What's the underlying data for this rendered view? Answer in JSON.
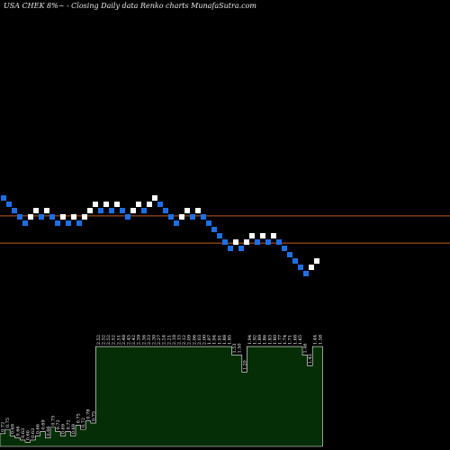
{
  "title": "USA CHEK 8%~ - Closing Daily data Renko charts MunafaSutra.com",
  "colors": {
    "background": "#000000",
    "up_brick": "#ffffff",
    "down_brick": "#1e6fe6",
    "reference_line": "#c85a1e",
    "volume_fill": "#062e06",
    "volume_outline": "#ffffff",
    "label_text": "#ffffff"
  },
  "chart_data": {
    "type": "renko",
    "reference_lines": [
      2.35,
      2.09
    ],
    "bricks": [
      {
        "dir": "down",
        "value": 2.52
      },
      {
        "dir": "down",
        "value": 2.46
      },
      {
        "dir": "down",
        "value": 2.4
      },
      {
        "dir": "down",
        "value": 2.34
      },
      {
        "dir": "down",
        "value": 2.28
      },
      {
        "dir": "up",
        "value": 2.34
      },
      {
        "dir": "up",
        "value": 2.4
      },
      {
        "dir": "down",
        "value": 2.34
      },
      {
        "dir": "up",
        "value": 2.4
      },
      {
        "dir": "down",
        "value": 2.34
      },
      {
        "dir": "down",
        "value": 2.28
      },
      {
        "dir": "up",
        "value": 2.34
      },
      {
        "dir": "down",
        "value": 2.28
      },
      {
        "dir": "up",
        "value": 2.34
      },
      {
        "dir": "down",
        "value": 2.28
      },
      {
        "dir": "up",
        "value": 2.34
      },
      {
        "dir": "up",
        "value": 2.4
      },
      {
        "dir": "up",
        "value": 2.46
      },
      {
        "dir": "down",
        "value": 2.4
      },
      {
        "dir": "up",
        "value": 2.46
      },
      {
        "dir": "down",
        "value": 2.4
      },
      {
        "dir": "up",
        "value": 2.46
      },
      {
        "dir": "down",
        "value": 2.4
      },
      {
        "dir": "down",
        "value": 2.34
      },
      {
        "dir": "up",
        "value": 2.4
      },
      {
        "dir": "up",
        "value": 2.46
      },
      {
        "dir": "down",
        "value": 2.4
      },
      {
        "dir": "up",
        "value": 2.46
      },
      {
        "dir": "up",
        "value": 2.52
      },
      {
        "dir": "down",
        "value": 2.46
      },
      {
        "dir": "down",
        "value": 2.4
      },
      {
        "dir": "down",
        "value": 2.34
      },
      {
        "dir": "down",
        "value": 2.28
      },
      {
        "dir": "up",
        "value": 2.34
      },
      {
        "dir": "up",
        "value": 2.4
      },
      {
        "dir": "down",
        "value": 2.34
      },
      {
        "dir": "up",
        "value": 2.4
      },
      {
        "dir": "down",
        "value": 2.34
      },
      {
        "dir": "down",
        "value": 2.28
      },
      {
        "dir": "down",
        "value": 2.22
      },
      {
        "dir": "down",
        "value": 2.16
      },
      {
        "dir": "down",
        "value": 2.1
      },
      {
        "dir": "down",
        "value": 2.04
      },
      {
        "dir": "up",
        "value": 2.1
      },
      {
        "dir": "down",
        "value": 2.04
      },
      {
        "dir": "up",
        "value": 2.1
      },
      {
        "dir": "up",
        "value": 2.16
      },
      {
        "dir": "down",
        "value": 2.1
      },
      {
        "dir": "up",
        "value": 2.16
      },
      {
        "dir": "down",
        "value": 2.1
      },
      {
        "dir": "up",
        "value": 2.16
      },
      {
        "dir": "down",
        "value": 2.1
      },
      {
        "dir": "down",
        "value": 2.04
      },
      {
        "dir": "down",
        "value": 1.98
      },
      {
        "dir": "down",
        "value": 1.92
      },
      {
        "dir": "down",
        "value": 1.86
      },
      {
        "dir": "down",
        "value": 1.8
      },
      {
        "dir": "up",
        "value": 1.86
      },
      {
        "dir": "up",
        "value": 1.92
      }
    ],
    "volume_bars": [
      {
        "value": 0.12,
        "label": "0.72"
      },
      {
        "value": 0.16,
        "label": "0.75"
      },
      {
        "value": 0.1,
        "label": "0.69"
      },
      {
        "value": 0.08,
        "label": "0.66"
      },
      {
        "value": 0.06,
        "label": "0.63"
      },
      {
        "value": 0.04,
        "label": "0.60"
      },
      {
        "value": 0.06,
        "label": "0.63"
      },
      {
        "value": 0.1,
        "label": "0.66"
      },
      {
        "value": 0.14,
        "label": "0.69"
      },
      {
        "value": 0.08,
        "label": "0.66"
      },
      {
        "value": 0.18,
        "label": "0.75"
      },
      {
        "value": 0.14,
        "label": "0.72"
      },
      {
        "value": 0.1,
        "label": "0.69"
      },
      {
        "value": 0.14,
        "label": "0.72"
      },
      {
        "value": 0.1,
        "label": "0.69"
      },
      {
        "value": 0.2,
        "label": "0.75"
      },
      {
        "value": 0.16,
        "label": "0.72"
      },
      {
        "value": 0.24,
        "label": "0.78"
      },
      {
        "value": 0.22,
        "label": "0.75"
      },
      {
        "value": 0.94,
        "label": "2.52"
      },
      {
        "value": 0.94,
        "label": "2.52"
      },
      {
        "value": 0.94,
        "label": "2.52"
      },
      {
        "value": 0.94,
        "label": "2.52"
      },
      {
        "value": 0.94,
        "label": "2.51"
      },
      {
        "value": 0.94,
        "label": "2.48"
      },
      {
        "value": 0.94,
        "label": "2.45"
      },
      {
        "value": 0.94,
        "label": "2.42"
      },
      {
        "value": 0.94,
        "label": "2.39"
      },
      {
        "value": 0.94,
        "label": "2.36"
      },
      {
        "value": 0.94,
        "label": "2.33"
      },
      {
        "value": 0.94,
        "label": "2.30"
      },
      {
        "value": 0.94,
        "label": "2.27"
      },
      {
        "value": 0.94,
        "label": "2.24"
      },
      {
        "value": 0.94,
        "label": "2.21"
      },
      {
        "value": 0.94,
        "label": "2.18"
      },
      {
        "value": 0.94,
        "label": "2.15"
      },
      {
        "value": 0.94,
        "label": "2.12"
      },
      {
        "value": 0.94,
        "label": "2.09"
      },
      {
        "value": 0.94,
        "label": "2.06"
      },
      {
        "value": 0.94,
        "label": "2.03"
      },
      {
        "value": 0.94,
        "label": "2.00"
      },
      {
        "value": 0.94,
        "label": "1.97"
      },
      {
        "value": 0.94,
        "label": "1.94"
      },
      {
        "value": 0.94,
        "label": "1.91"
      },
      {
        "value": 0.94,
        "label": "1.88"
      },
      {
        "value": 0.94,
        "label": "1.85"
      },
      {
        "value": 0.86,
        "label": "1.53"
      },
      {
        "value": 0.86,
        "label": "1.50"
      },
      {
        "value": 0.7,
        "label": "1.20"
      },
      {
        "value": 0.94,
        "label": "1.94"
      },
      {
        "value": 0.94,
        "label": "1.92"
      },
      {
        "value": 0.94,
        "label": "1.89"
      },
      {
        "value": 0.94,
        "label": "1.86"
      },
      {
        "value": 0.94,
        "label": "1.83"
      },
      {
        "value": 0.94,
        "label": "1.80"
      },
      {
        "value": 0.94,
        "label": "1.77"
      },
      {
        "value": 0.94,
        "label": "1.74"
      },
      {
        "value": 0.94,
        "label": "1.71"
      },
      {
        "value": 0.94,
        "label": "1.68"
      },
      {
        "value": 0.94,
        "label": "1.65"
      },
      {
        "value": 0.86,
        "label": "1.46"
      },
      {
        "value": 0.76,
        "label": "1.43"
      },
      {
        "value": 0.94,
        "label": "1.44"
      },
      {
        "value": 0.94,
        "label": "1.58"
      }
    ]
  }
}
